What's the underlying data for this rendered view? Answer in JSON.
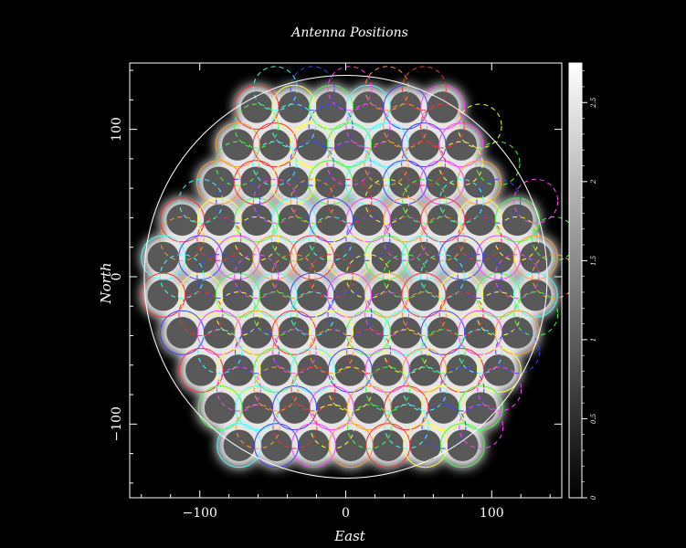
{
  "chart_data": {
    "type": "scatter",
    "title": "Antenna Positions",
    "xlabel": "East",
    "ylabel": "North",
    "xlim": [
      -148,
      148
    ],
    "ylim": [
      -150,
      145
    ],
    "x_ticks": [
      -100,
      0,
      100
    ],
    "x_tick_labels": [
      "−100",
      "0",
      "100"
    ],
    "y_ticks": [
      -100,
      0,
      100
    ],
    "y_tick_labels": [
      "−100",
      "0",
      "100"
    ],
    "grid": false,
    "background_image": "grayscale coverage map",
    "boundary_circle": {
      "center": [
        0,
        0
      ],
      "radius": 138
    },
    "pointing_radius": 15,
    "row_spacing": 25.5,
    "column_spacing": 25.5,
    "hex_rows": [
      {
        "y": 115,
        "x_start": -61,
        "count": 6
      },
      {
        "y": 89.5,
        "x_start": -74,
        "count": 7
      },
      {
        "y": 64,
        "x_start": -87,
        "count": 8
      },
      {
        "y": 38.5,
        "x_start": -112,
        "count": 10
      },
      {
        "y": 13,
        "x_start": -125,
        "count": 11
      },
      {
        "y": -12.5,
        "x_start": -125,
        "count": 11
      },
      {
        "y": -38,
        "x_start": -112,
        "count": 10
      },
      {
        "y": -63.5,
        "x_start": -99,
        "count": 9
      },
      {
        "y": -89,
        "x_start": -86,
        "count": 8
      },
      {
        "y": -114.5,
        "x_start": -73,
        "count": 7
      }
    ],
    "circle_colors": [
      "#ff3030",
      "#ffff40",
      "#40ff40",
      "#40ffff",
      "#4040ff",
      "#ff40ff",
      "#ff9a30"
    ],
    "colorbar": {
      "min": 0,
      "max": 2.75,
      "ticks": [
        0,
        0.5,
        1,
        1.5,
        2,
        2.5
      ],
      "tick_labels": [
        "0",
        "0.5",
        "1",
        "1.5",
        "2",
        "2.5"
      ]
    }
  }
}
